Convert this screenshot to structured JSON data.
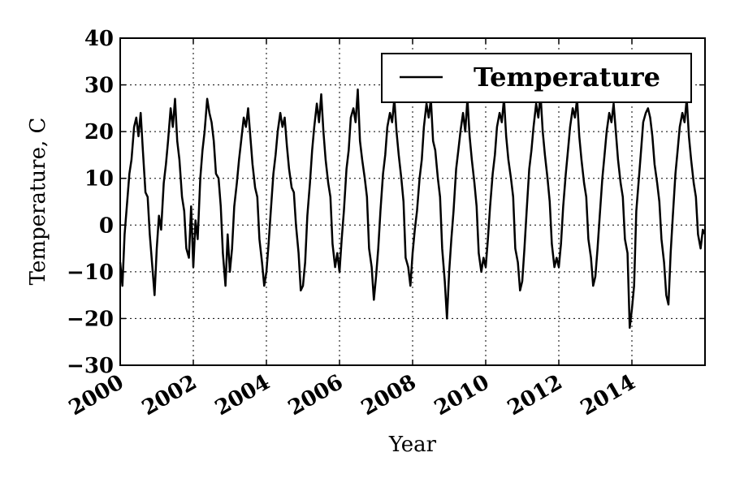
{
  "chart_data": {
    "type": "line",
    "title": "",
    "xlabel": "Year",
    "ylabel": "Temperature, C",
    "xlim": [
      2000,
      2016
    ],
    "ylim": [
      -30,
      40
    ],
    "x_ticks": [
      2000,
      2002,
      2004,
      2006,
      2008,
      2010,
      2012,
      2014
    ],
    "x_tick_labels": [
      "2000",
      "2002",
      "2004",
      "2006",
      "2008",
      "2010",
      "2012",
      "2014"
    ],
    "y_ticks": [
      -30,
      -20,
      -10,
      0,
      10,
      20,
      30,
      40
    ],
    "y_tick_labels": [
      "−30",
      "−20",
      "−10",
      "0",
      "10",
      "20",
      "30",
      "40"
    ],
    "grid": true,
    "legend_position": "top-right",
    "line_color": "#000000",
    "series": [
      {
        "name": "Temperature",
        "x": [
          2000.0,
          2000.06,
          2000.12,
          2000.19,
          2000.25,
          2000.31,
          2000.38,
          2000.44,
          2000.5,
          2000.56,
          2000.62,
          2000.69,
          2000.75,
          2000.81,
          2000.88,
          2000.94,
          2001.0,
          2001.06,
          2001.12,
          2001.19,
          2001.25,
          2001.31,
          2001.38,
          2001.44,
          2001.5,
          2001.56,
          2001.62,
          2001.69,
          2001.75,
          2001.81,
          2001.88,
          2001.94,
          2002.0,
          2002.06,
          2002.12,
          2002.19,
          2002.25,
          2002.31,
          2002.38,
          2002.44,
          2002.5,
          2002.56,
          2002.62,
          2002.69,
          2002.75,
          2002.81,
          2002.88,
          2002.94,
          2003.0,
          2003.06,
          2003.12,
          2003.19,
          2003.25,
          2003.31,
          2003.38,
          2003.44,
          2003.5,
          2003.56,
          2003.62,
          2003.69,
          2003.75,
          2003.81,
          2003.88,
          2003.94,
          2004.0,
          2004.06,
          2004.12,
          2004.19,
          2004.25,
          2004.31,
          2004.38,
          2004.44,
          2004.5,
          2004.56,
          2004.62,
          2004.69,
          2004.75,
          2004.81,
          2004.88,
          2004.94,
          2005.0,
          2005.06,
          2005.12,
          2005.19,
          2005.25,
          2005.31,
          2005.38,
          2005.44,
          2005.5,
          2005.56,
          2005.62,
          2005.69,
          2005.75,
          2005.81,
          2005.88,
          2005.94,
          2006.0,
          2006.06,
          2006.12,
          2006.19,
          2006.25,
          2006.31,
          2006.38,
          2006.44,
          2006.5,
          2006.56,
          2006.62,
          2006.69,
          2006.75,
          2006.81,
          2006.88,
          2006.94,
          2007.0,
          2007.06,
          2007.12,
          2007.19,
          2007.25,
          2007.31,
          2007.38,
          2007.44,
          2007.5,
          2007.56,
          2007.62,
          2007.69,
          2007.75,
          2007.81,
          2007.88,
          2007.94,
          2008.0,
          2008.06,
          2008.12,
          2008.19,
          2008.25,
          2008.31,
          2008.38,
          2008.44,
          2008.5,
          2008.56,
          2008.62,
          2008.69,
          2008.75,
          2008.81,
          2008.88,
          2008.94,
          2009.0,
          2009.06,
          2009.12,
          2009.19,
          2009.25,
          2009.31,
          2009.38,
          2009.44,
          2009.5,
          2009.56,
          2009.62,
          2009.69,
          2009.75,
          2009.81,
          2009.88,
          2009.94,
          2010.0,
          2010.06,
          2010.12,
          2010.19,
          2010.25,
          2010.31,
          2010.38,
          2010.44,
          2010.5,
          2010.56,
          2010.62,
          2010.69,
          2010.75,
          2010.81,
          2010.88,
          2010.94,
          2011.0,
          2011.06,
          2011.12,
          2011.19,
          2011.25,
          2011.31,
          2011.38,
          2011.44,
          2011.5,
          2011.56,
          2011.62,
          2011.69,
          2011.75,
          2011.81,
          2011.88,
          2011.94,
          2012.0,
          2012.06,
          2012.12,
          2012.19,
          2012.25,
          2012.31,
          2012.38,
          2012.44,
          2012.5,
          2012.56,
          2012.62,
          2012.69,
          2012.75,
          2012.81,
          2012.88,
          2012.94,
          2013.0,
          2013.06,
          2013.12,
          2013.19,
          2013.25,
          2013.31,
          2013.38,
          2013.44,
          2013.5,
          2013.56,
          2013.62,
          2013.69,
          2013.75,
          2013.81,
          2013.88,
          2013.94,
          2014.0,
          2014.06,
          2014.12,
          2014.19,
          2014.25,
          2014.31,
          2014.38,
          2014.44,
          2014.5,
          2014.56,
          2014.62,
          2014.69,
          2014.75,
          2014.81,
          2014.88,
          2014.94,
          2015.0,
          2015.06,
          2015.12,
          2015.19,
          2015.25,
          2015.31,
          2015.38,
          2015.44,
          2015.5,
          2015.56,
          2015.62,
          2015.69,
          2015.75,
          2015.81,
          2015.88,
          2015.94,
          2016.0
        ],
        "y": [
          -8,
          -13,
          -2,
          5,
          11,
          14,
          21,
          23,
          19,
          24,
          16,
          7,
          6,
          -2,
          -9,
          -15,
          -5,
          2,
          -1,
          9,
          13,
          18,
          25,
          21,
          27,
          18,
          14,
          6,
          3,
          -5,
          -7,
          4,
          -9,
          1,
          -3,
          10,
          16,
          20,
          27,
          24,
          22,
          18,
          11,
          10,
          4,
          -6,
          -13,
          -2,
          -10,
          -5,
          4,
          9,
          14,
          18,
          23,
          21,
          25,
          19,
          13,
          8,
          6,
          -3,
          -8,
          -13,
          -10,
          -4,
          3,
          11,
          15,
          20,
          24,
          21,
          23,
          17,
          12,
          8,
          7,
          0,
          -6,
          -14,
          -13,
          -8,
          2,
          9,
          16,
          21,
          26,
          22,
          28,
          20,
          14,
          9,
          6,
          -4,
          -9,
          -6,
          -10,
          -3,
          3,
          12,
          16,
          23,
          25,
          22,
          29,
          18,
          14,
          10,
          6,
          -5,
          -9,
          -16,
          -11,
          -5,
          3,
          11,
          15,
          21,
          24,
          22,
          27,
          20,
          15,
          10,
          5,
          -7,
          -9,
          -13,
          -6,
          -1,
          3,
          10,
          14,
          21,
          26,
          23,
          27,
          18,
          16,
          10,
          6,
          -5,
          -12,
          -20,
          -10,
          -3,
          3,
          12,
          16,
          20,
          24,
          20,
          27,
          19,
          14,
          9,
          4,
          -6,
          -10,
          -7,
          -9,
          -3,
          4,
          11,
          15,
          21,
          24,
          22,
          27,
          19,
          14,
          10,
          6,
          -5,
          -8,
          -14,
          -12,
          -5,
          3,
          12,
          16,
          21,
          26,
          23,
          28,
          20,
          15,
          10,
          5,
          -4,
          -9,
          -7,
          -9,
          -4,
          4,
          11,
          16,
          21,
          25,
          23,
          27,
          19,
          14,
          9,
          6,
          -3,
          -7,
          -13,
          -11,
          -5,
          2,
          10,
          15,
          20,
          24,
          22,
          26,
          20,
          14,
          9,
          6,
          -3,
          -6,
          -22,
          -18,
          -13,
          3,
          10,
          16,
          22,
          24,
          25,
          23,
          19,
          13,
          9,
          5,
          -3,
          -8,
          -15,
          -17,
          -6,
          2,
          11,
          16,
          21,
          24,
          22,
          27,
          19,
          14,
          9,
          6,
          -2,
          -5,
          -1,
          -2
        ]
      }
    ]
  }
}
